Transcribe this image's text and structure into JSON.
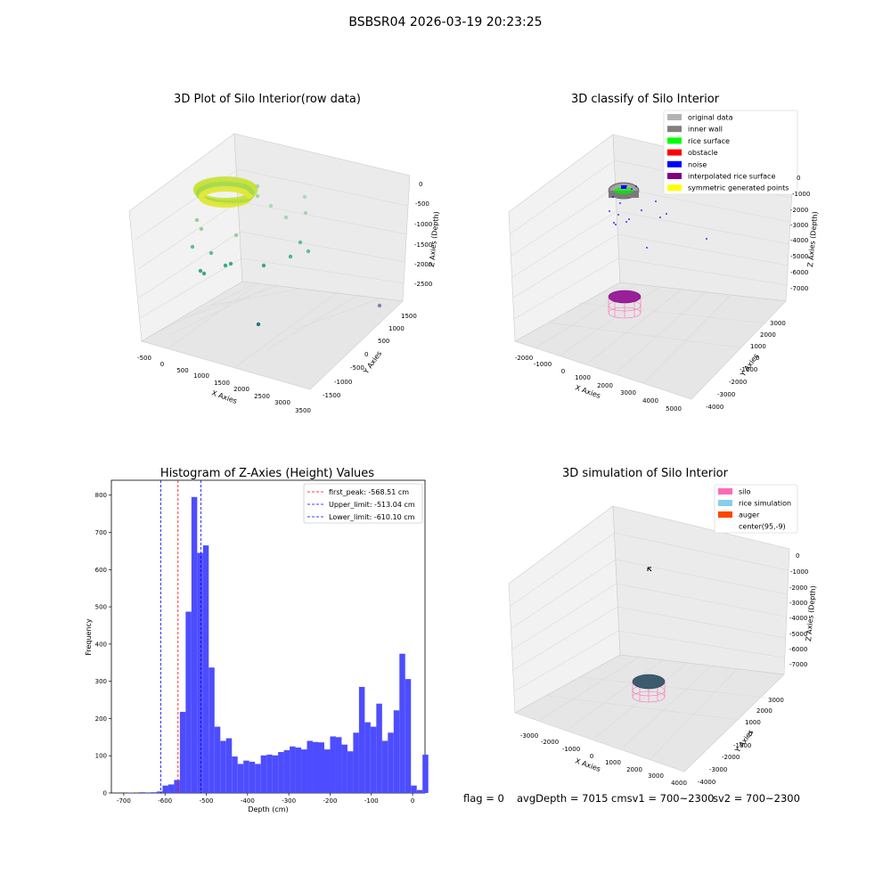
{
  "figure_title": "BSBSR04 2026-03-19 20:23:25",
  "panels": {
    "raw": {
      "title": "3D Plot of Silo Interior(row data)",
      "xlabel": "X Axies",
      "ylabel": "Y Axies",
      "zlabel": "Z Axies (Depth)",
      "xticks": [
        "-500",
        "0",
        "500",
        "1000",
        "1500",
        "2000",
        "2500",
        "3000",
        "3500"
      ],
      "yticks": [
        "-1500",
        "-1000",
        "-500",
        "0",
        "500",
        "1000",
        "1500"
      ],
      "zticks": [
        "0",
        "-500",
        "-1000",
        "-1500",
        "-2000",
        "-2500"
      ]
    },
    "classify": {
      "title": "3D classify of Silo Interior",
      "xlabel": "X Axies",
      "ylabel": "Y Axies",
      "zlabel": "Z Axies (Depth)",
      "xticks": [
        "-2000",
        "-1000",
        "0",
        "1000",
        "2000",
        "3000",
        "4000",
        "5000"
      ],
      "yticks": [
        "-4000",
        "-3000",
        "-2000",
        "-1000",
        "0",
        "1000",
        "2000",
        "3000"
      ],
      "zticks": [
        "0",
        "-1000",
        "-2000",
        "-3000",
        "-4000",
        "-5000",
        "-6000",
        "-7000"
      ],
      "legend": [
        {
          "label": "original data",
          "color": "#b3b3b3"
        },
        {
          "label": "inner wall",
          "color": "#808080"
        },
        {
          "label": "rice surface",
          "color": "#00ff00"
        },
        {
          "label": "obstacle",
          "color": "#ff0000"
        },
        {
          "label": "noise",
          "color": "#0000ff"
        },
        {
          "label": "interpolated rice surface",
          "color": "#800080"
        },
        {
          "label": "symmetric generated points",
          "color": "#ffff00"
        }
      ]
    },
    "simulation": {
      "title": "3D simulation of Silo Interior",
      "xlabel": "X Axies",
      "ylabel": "Y Axies",
      "zlabel": "Z Axies (Depth)",
      "xticks": [
        "-3000",
        "-2000",
        "-1000",
        "0",
        "1000",
        "2000",
        "3000",
        "4000"
      ],
      "yticks": [
        "-4000",
        "-3000",
        "-2000",
        "-1000",
        "0",
        "1000",
        "2000",
        "3000"
      ],
      "zticks": [
        "0",
        "-1000",
        "-2000",
        "-3000",
        "-4000",
        "-5000",
        "-6000",
        "-7000"
      ],
      "legend": [
        {
          "label": "silo",
          "color": "#ff69b4"
        },
        {
          "label": "rice simulation",
          "color": "#87ceeb"
        },
        {
          "label": "auger",
          "color": "#ff4500"
        },
        {
          "label": "center(95,-9)",
          "color": ""
        }
      ]
    }
  },
  "chart_data": {
    "type": "bar",
    "title": "Histogram of Z-Axies (Height) Values",
    "xlabel": "Depth (cm)",
    "ylabel": "Frequency",
    "xlim": [
      -730,
      30
    ],
    "ylim": [
      0,
      840
    ],
    "xticks": [
      -700,
      -600,
      -500,
      -400,
      -300,
      -200,
      -100,
      0
    ],
    "yticks": [
      0,
      100,
      200,
      300,
      400,
      500,
      600,
      700,
      800
    ],
    "bar_color": "#4d4dff",
    "bin_start": -690,
    "bin_width": 14,
    "values": [
      1,
      0,
      2,
      0,
      2,
      4,
      20,
      23,
      35,
      218,
      487,
      795,
      645,
      665,
      337,
      178,
      140,
      147,
      98,
      78,
      87,
      84,
      78,
      101,
      103,
      101,
      110,
      115,
      125,
      122,
      117,
      140,
      137,
      136,
      117,
      152,
      150,
      130,
      112,
      162,
      285,
      190,
      178,
      240,
      140,
      162,
      222,
      374,
      306,
      20,
      8,
      103
    ],
    "vlines": [
      {
        "x": -568.51,
        "label": "first_peak: -568.51 cm",
        "color": "#ff0000"
      },
      {
        "x": -513.04,
        "label": "Upper_limit: -513.04 cm",
        "color": "#0000ff"
      },
      {
        "x": -610.1,
        "label": "Lower_limit: -610.10 cm",
        "color": "#0000ff"
      }
    ],
    "legend_position": "top-right"
  },
  "footer": {
    "flag": "flag = 0",
    "avg": "avgDepth = 7015 cmsv1 = 700~2300",
    "sv2": "sv2 = 700~2300"
  }
}
